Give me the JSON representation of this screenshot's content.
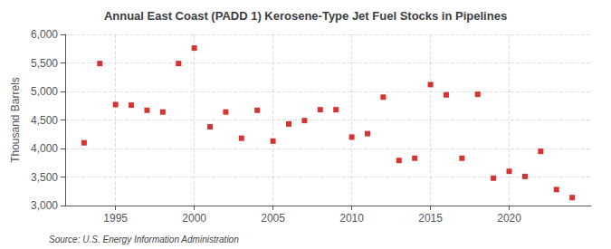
{
  "chart_data": {
    "type": "scatter",
    "title": "Annual East Coast (PADD 1) Kerosene-Type Jet Fuel Stocks in Pipelines",
    "ylabel": "Thousand Barrels",
    "annotation": "Source: U.S. Energy Information Administration",
    "x": [
      1993,
      1994,
      1995,
      1996,
      1997,
      1998,
      1999,
      2000,
      2001,
      2002,
      2003,
      2004,
      2005,
      2006,
      2007,
      2008,
      2009,
      2010,
      2011,
      2012,
      2013,
      2014,
      2015,
      2016,
      2017,
      2018,
      2019,
      2020,
      2021,
      2022,
      2023,
      2024
    ],
    "values": [
      4100,
      5490,
      4770,
      4760,
      4670,
      4640,
      5490,
      5760,
      4380,
      4640,
      4180,
      4670,
      4130,
      4430,
      4490,
      4680,
      4680,
      4200,
      4260,
      4900,
      3790,
      3830,
      5120,
      4940,
      3830,
      4950,
      3480,
      3600,
      3510,
      3950,
      3280,
      3140
    ],
    "color": "#cc0000",
    "marker": "square",
    "xlim": [
      1991.8,
      2025.2
    ],
    "xticks": [
      1995,
      2000,
      2005,
      2010,
      2015,
      2020
    ],
    "ylim": [
      3000,
      6000
    ],
    "yticks": [
      {
        "value": 3000,
        "label": "3,000"
      },
      {
        "value": 3500,
        "label": "3,500"
      },
      {
        "value": 4000,
        "label": "4,000"
      },
      {
        "value": 4500,
        "label": "4,500"
      },
      {
        "value": 5000,
        "label": "5,000"
      },
      {
        "value": 5500,
        "label": "5,500"
      },
      {
        "value": 6000,
        "label": "6,000"
      }
    ],
    "grid": true
  }
}
